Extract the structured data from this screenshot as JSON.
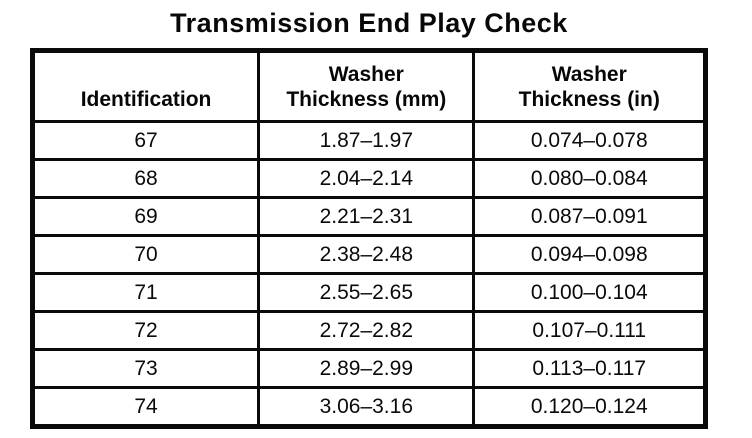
{
  "page": {
    "title": "Transmission End Play Check"
  },
  "table": {
    "columns": [
      {
        "label": "Identification"
      },
      {
        "line1": "Washer",
        "line2": "Thickness (mm)"
      },
      {
        "line1": "Washer",
        "line2": "Thickness (in)"
      }
    ],
    "rows": [
      {
        "id": "67",
        "mm": "1.87–1.97",
        "in": "0.074–0.078"
      },
      {
        "id": "68",
        "mm": "2.04–2.14",
        "in": "0.080–0.084"
      },
      {
        "id": "69",
        "mm": "2.21–2.31",
        "in": "0.087–0.091"
      },
      {
        "id": "70",
        "mm": "2.38–2.48",
        "in": "0.094–0.098"
      },
      {
        "id": "71",
        "mm": "2.55–2.65",
        "in": "0.100–0.104"
      },
      {
        "id": "72",
        "mm": "2.72–2.82",
        "in": "0.107–0.111"
      },
      {
        "id": "73",
        "mm": "2.89–2.99",
        "in": "0.113–0.117"
      },
      {
        "id": "74",
        "mm": "3.06–3.16",
        "in": "0.120–0.124"
      }
    ]
  }
}
